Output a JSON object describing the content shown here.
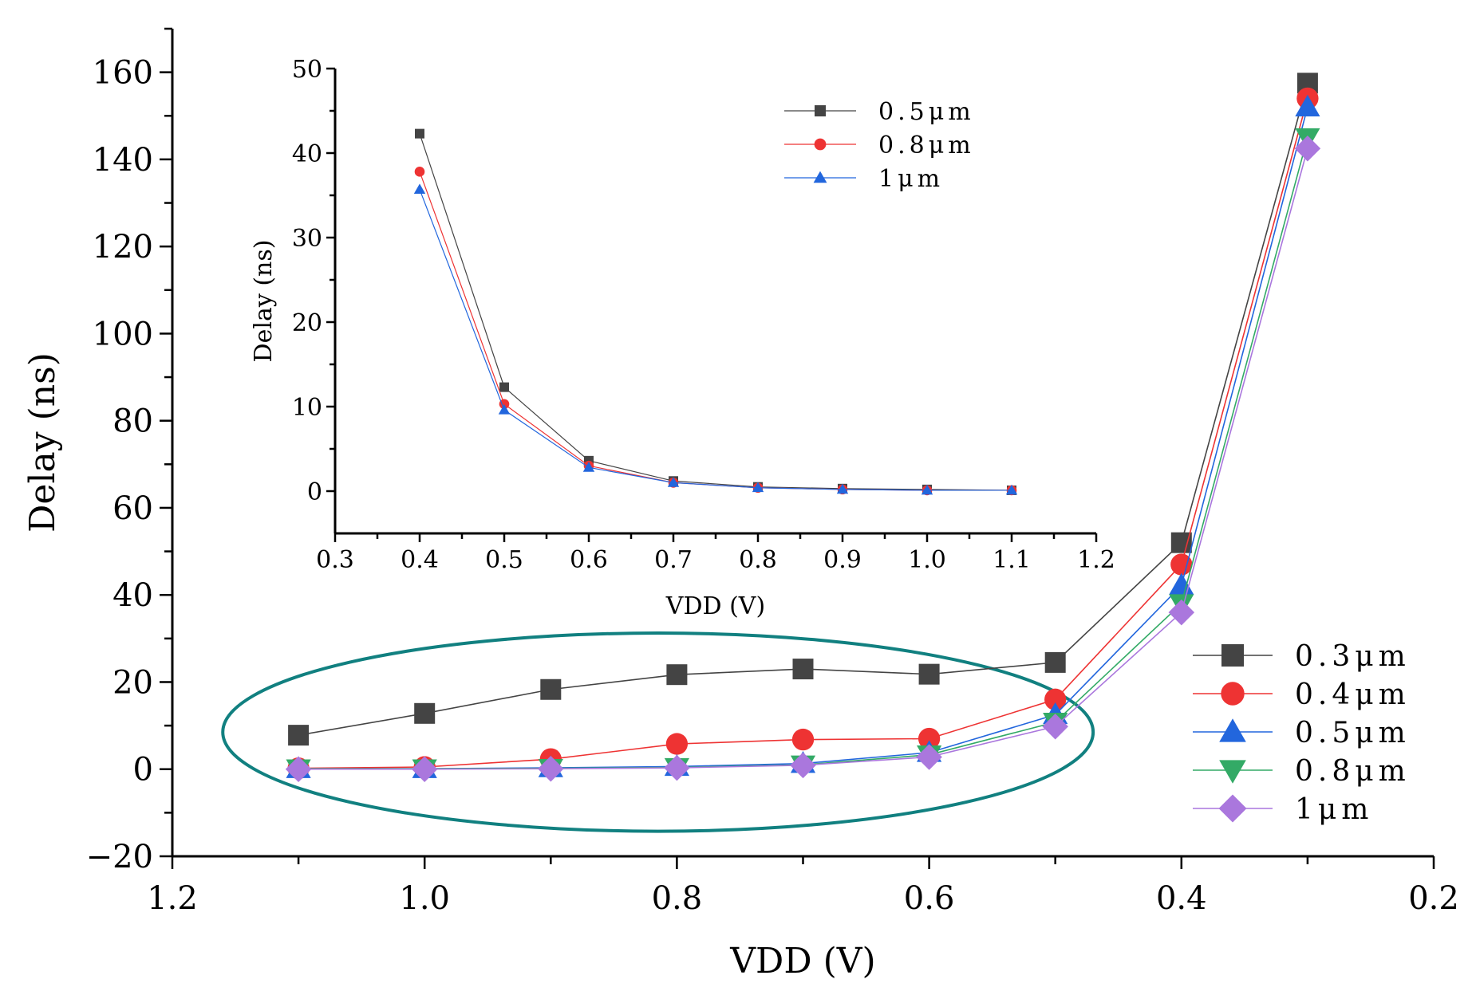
{
  "chart_data": [
    {
      "type": "line",
      "xlabel": "VDD (V)",
      "ylabel": "Delay (ns)",
      "xlim": [
        1.2,
        0.2
      ],
      "ylim": [
        -20,
        170
      ],
      "x_ticks": [
        1.2,
        1.0,
        0.8,
        0.6,
        0.4,
        0.2
      ],
      "x_tick_labels": [
        "1.2",
        "1.0",
        "0.8",
        "0.6",
        "0.4",
        "0.2"
      ],
      "y_ticks": [
        -20,
        0,
        20,
        40,
        60,
        80,
        100,
        120,
        140,
        160
      ],
      "y_tick_labels": [
        "−20",
        "0",
        "20",
        "40",
        "60",
        "80",
        "100",
        "120",
        "140",
        "160"
      ],
      "legend_position": "bottom-right",
      "x": [
        1.1,
        1.0,
        0.9,
        0.8,
        0.7,
        0.6,
        0.5,
        0.4,
        0.3
      ],
      "series": [
        {
          "name": "0.3μm",
          "color": "#444444",
          "marker": "square",
          "values": [
            7.8,
            12.8,
            18.3,
            21.7,
            23.0,
            21.8,
            24.5,
            52.0,
            157.5
          ]
        },
        {
          "name": "0.4μm",
          "color": "#ee3333",
          "marker": "circle",
          "values": [
            0.2,
            0.5,
            2.3,
            5.8,
            6.8,
            7.0,
            16.0,
            47.0,
            154.0
          ]
        },
        {
          "name": "0.5μm",
          "color": "#2266dd",
          "marker": "triangle-up",
          "values": [
            0.1,
            0.1,
            0.3,
            0.6,
            1.3,
            3.8,
            12.5,
            42.2,
            152.0
          ]
        },
        {
          "name": "0.8μm",
          "color": "#33aa66",
          "marker": "triangle-down",
          "values": [
            0.1,
            0.1,
            0.2,
            0.4,
            1.0,
            3.3,
            10.8,
            38.0,
            145.0
          ]
        },
        {
          "name": "1μm",
          "color": "#aa77dd",
          "marker": "diamond",
          "values": [
            0.0,
            0.0,
            0.1,
            0.3,
            0.9,
            2.8,
            9.8,
            36.0,
            142.5
          ]
        }
      ]
    },
    {
      "type": "line",
      "xlabel": "VDD (V)",
      "ylabel": "Delay (ns)",
      "xlim": [
        0.3,
        1.2
      ],
      "ylim": [
        -5,
        50
      ],
      "x_ticks": [
        0.3,
        0.4,
        0.5,
        0.6,
        0.7,
        0.8,
        0.9,
        1.0,
        1.1,
        1.2
      ],
      "x_tick_labels": [
        "0.3",
        "0.4",
        "0.5",
        "0.6",
        "0.7",
        "0.8",
        "0.9",
        "1.0",
        "1.1",
        "1.2"
      ],
      "y_ticks": [
        0,
        10,
        20,
        30,
        40,
        50
      ],
      "y_tick_labels": [
        "0",
        "10",
        "20",
        "30",
        "40",
        "50"
      ],
      "legend_position": "top-right",
      "x": [
        0.4,
        0.5,
        0.6,
        0.7,
        0.8,
        0.9,
        1.0,
        1.1
      ],
      "series": [
        {
          "name": "0.5μm",
          "color": "#444444",
          "marker": "square",
          "values": [
            42.3,
            12.3,
            3.6,
            1.2,
            0.5,
            0.3,
            0.2,
            0.1
          ]
        },
        {
          "name": "0.8μm",
          "color": "#ee3333",
          "marker": "circle",
          "values": [
            37.8,
            10.3,
            3.0,
            1.0,
            0.4,
            0.2,
            0.1,
            0.1
          ]
        },
        {
          "name": "1μm",
          "color": "#2266dd",
          "marker": "triangle-up",
          "values": [
            35.7,
            9.6,
            2.8,
            1.0,
            0.4,
            0.2,
            0.1,
            0.1
          ]
        }
      ]
    }
  ],
  "annotation": {
    "ellipse_color": "#118080"
  }
}
